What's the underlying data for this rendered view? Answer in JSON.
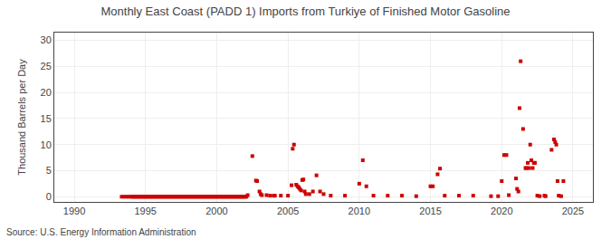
{
  "chart_data": {
    "type": "scatter",
    "title": "Monthly East Coast (PADD 1) Imports from Turkiye of Finished Motor Gasoline",
    "ylabel": "Thousand Barrels per Day",
    "annotations": [
      "Source: U.S. Energy Information Administration"
    ],
    "color": "#cc0000",
    "marker": "square",
    "grid": true,
    "xlim": [
      1988.6,
      2026.4
    ],
    "xticks": [
      1990,
      1995,
      2000,
      2005,
      2010,
      2015,
      2020,
      2025
    ],
    "ylim": [
      -1.0,
      31.5
    ],
    "yticks": [
      0,
      5,
      10,
      15,
      20,
      25,
      30
    ],
    "x": [
      1993.33,
      1993.5,
      1993.67,
      1993.83,
      1994.0,
      1994.08,
      1994.17,
      1994.25,
      1994.33,
      1994.42,
      1994.5,
      1994.58,
      1994.67,
      1994.75,
      1994.83,
      1994.92,
      1995.0,
      1995.08,
      1995.17,
      1995.25,
      1995.33,
      1995.42,
      1995.5,
      1995.58,
      1995.67,
      1995.75,
      1995.83,
      1995.92,
      1996.0,
      1996.08,
      1996.17,
      1996.25,
      1996.33,
      1996.42,
      1996.5,
      1996.58,
      1996.67,
      1996.75,
      1996.83,
      1996.92,
      1997.0,
      1997.08,
      1997.17,
      1997.25,
      1997.33,
      1997.42,
      1997.5,
      1997.58,
      1997.67,
      1997.75,
      1997.83,
      1997.92,
      1998.0,
      1998.08,
      1998.17,
      1998.25,
      1998.33,
      1998.42,
      1998.5,
      1998.58,
      1998.67,
      1998.75,
      1998.83,
      1998.92,
      1999.0,
      1999.08,
      1999.17,
      1999.25,
      1999.33,
      1999.42,
      1999.5,
      1999.58,
      1999.67,
      1999.75,
      1999.83,
      1999.92,
      2000.0,
      2000.08,
      2000.17,
      2000.25,
      2000.33,
      2000.42,
      2000.5,
      2000.58,
      2000.67,
      2000.75,
      2000.83,
      2000.92,
      2001.0,
      2001.08,
      2001.17,
      2001.25,
      2001.33,
      2001.42,
      2001.5,
      2001.58,
      2001.67,
      2001.75,
      2001.83,
      2001.92,
      2002.0,
      2002.08,
      2002.17,
      2002.5,
      2002.75,
      2002.83,
      2003.0,
      2003.08,
      2003.17,
      2003.5,
      2003.75,
      2004.0,
      2004.08,
      2004.5,
      2005.0,
      2005.25,
      2005.33,
      2005.42,
      2005.58,
      2005.67,
      2005.75,
      2005.83,
      2005.92,
      2006.0,
      2006.08,
      2006.17,
      2006.25,
      2006.5,
      2006.75,
      2007.0,
      2007.25,
      2007.5,
      2008.0,
      2009.0,
      2010.0,
      2010.25,
      2010.5,
      2011.0,
      2012.0,
      2013.0,
      2014.0,
      2015.0,
      2015.17,
      2015.5,
      2015.67,
      2016.0,
      2017.0,
      2018.0,
      2019.25,
      2019.75,
      2020.0,
      2020.17,
      2020.33,
      2020.5,
      2021.0,
      2021.08,
      2021.17,
      2021.25,
      2021.33,
      2021.5,
      2021.67,
      2021.75,
      2021.83,
      2021.92,
      2022.0,
      2022.08,
      2022.17,
      2022.25,
      2022.33,
      2022.5,
      2022.67,
      2023.0,
      2023.08,
      2023.5,
      2023.67,
      2023.75,
      2023.83,
      2023.92,
      2024.0,
      2024.17,
      2024.33
    ],
    "values": [
      0,
      0,
      0,
      0,
      0,
      0,
      0,
      0,
      0,
      0,
      0,
      0,
      0,
      0,
      0,
      0,
      0,
      0,
      0,
      0,
      0,
      0,
      0,
      0,
      0,
      0,
      0,
      0,
      0,
      0,
      0,
      0,
      0,
      0,
      0,
      0,
      0,
      0,
      0,
      0,
      0,
      0,
      0,
      0,
      0,
      0,
      0,
      0,
      0,
      0,
      0,
      0,
      0,
      0,
      0,
      0,
      0,
      0,
      0,
      0,
      0,
      0,
      0,
      0,
      0,
      0,
      0,
      0,
      0,
      0,
      0,
      0,
      0,
      0,
      0,
      0,
      0,
      0,
      0,
      0,
      0,
      0,
      0,
      0,
      0,
      0,
      0,
      0,
      0,
      0,
      0,
      0,
      0,
      0,
      0,
      0,
      0,
      0,
      0,
      0,
      0,
      0,
      0.3,
      7.8,
      3.1,
      3.0,
      1.0,
      0.5,
      0.3,
      0.3,
      0.2,
      0.2,
      0.2,
      0.2,
      0.2,
      2.2,
      9.2,
      10.0,
      2.3,
      2.0,
      1.8,
      1.5,
      1.2,
      3.2,
      3.3,
      1.0,
      0.5,
      0.5,
      1.0,
      4.1,
      1.0,
      0.5,
      0.2,
      0.2,
      2.5,
      7.0,
      2.0,
      0.2,
      0.2,
      0.2,
      0.1,
      2.0,
      2.0,
      4.3,
      5.4,
      0.2,
      0.2,
      0.2,
      0.1,
      0.1,
      3.0,
      8.0,
      8.0,
      0.3,
      3.5,
      1.5,
      1.0,
      17.0,
      26.0,
      13.0,
      5.5,
      5.5,
      6.5,
      5.5,
      10.0,
      7.0,
      5.5,
      6.5,
      6.5,
      0.2,
      0.1,
      0.2,
      0.1,
      9.0,
      11.0,
      10.5,
      10.0,
      3.0,
      0.2,
      0.1,
      3.0
    ]
  }
}
